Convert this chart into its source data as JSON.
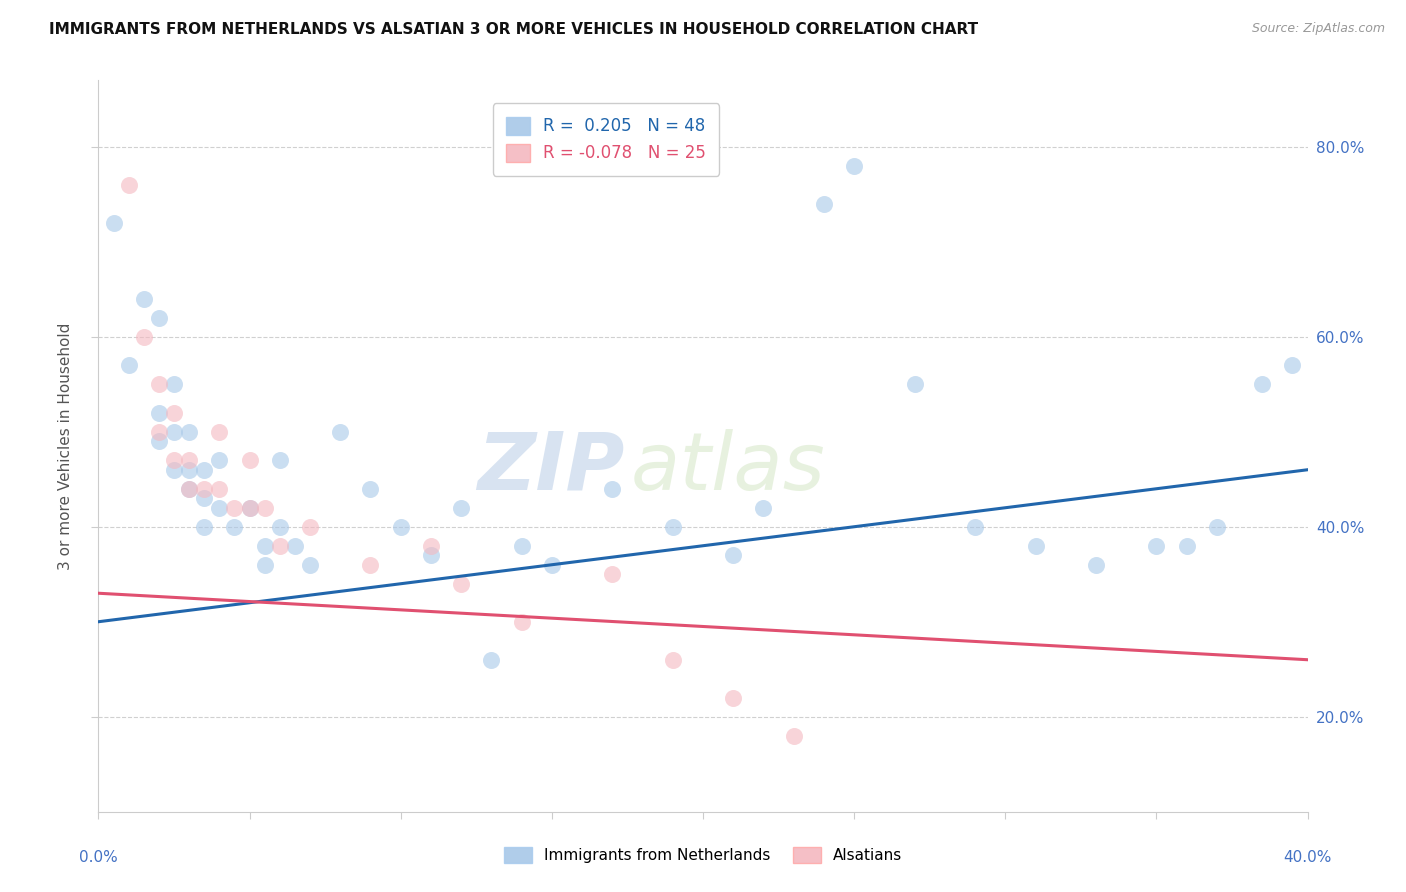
{
  "title": "IMMIGRANTS FROM NETHERLANDS VS ALSATIAN 3 OR MORE VEHICLES IN HOUSEHOLD CORRELATION CHART",
  "source": "Source: ZipAtlas.com",
  "ylabel": "3 or more Vehicles in Household",
  "legend_blue_label": "R =  0.205   N = 48",
  "legend_pink_label": "R = -0.078   N = 25",
  "legend_bottom_blue": "Immigrants from Netherlands",
  "legend_bottom_pink": "Alsatians",
  "blue_color": "#a8c8e8",
  "pink_color": "#f4b8c0",
  "line_blue_color": "#2166ac",
  "line_pink_color": "#e05070",
  "blue_scatter": [
    [
      0.5,
      72
    ],
    [
      1.0,
      57
    ],
    [
      1.5,
      64
    ],
    [
      2.0,
      62
    ],
    [
      2.0,
      52
    ],
    [
      2.0,
      49
    ],
    [
      2.5,
      55
    ],
    [
      2.5,
      50
    ],
    [
      2.5,
      46
    ],
    [
      3.0,
      50
    ],
    [
      3.0,
      46
    ],
    [
      3.0,
      44
    ],
    [
      3.5,
      46
    ],
    [
      3.5,
      43
    ],
    [
      3.5,
      40
    ],
    [
      4.0,
      47
    ],
    [
      4.0,
      42
    ],
    [
      4.5,
      40
    ],
    [
      5.0,
      42
    ],
    [
      5.5,
      38
    ],
    [
      5.5,
      36
    ],
    [
      6.0,
      47
    ],
    [
      6.0,
      40
    ],
    [
      6.5,
      38
    ],
    [
      7.0,
      36
    ],
    [
      8.0,
      50
    ],
    [
      9.0,
      44
    ],
    [
      10.0,
      40
    ],
    [
      11.0,
      37
    ],
    [
      12.0,
      42
    ],
    [
      13.0,
      26
    ],
    [
      14.0,
      38
    ],
    [
      15.0,
      36
    ],
    [
      17.0,
      44
    ],
    [
      19.0,
      40
    ],
    [
      21.0,
      37
    ],
    [
      22.0,
      42
    ],
    [
      24.0,
      74
    ],
    [
      25.0,
      78
    ],
    [
      27.0,
      55
    ],
    [
      29.0,
      40
    ],
    [
      31.0,
      38
    ],
    [
      33.0,
      36
    ],
    [
      35.0,
      38
    ],
    [
      36.0,
      38
    ],
    [
      37.0,
      40
    ],
    [
      38.5,
      55
    ],
    [
      39.5,
      57
    ]
  ],
  "pink_scatter": [
    [
      1.0,
      76
    ],
    [
      1.5,
      60
    ],
    [
      2.0,
      55
    ],
    [
      2.0,
      50
    ],
    [
      2.5,
      52
    ],
    [
      2.5,
      47
    ],
    [
      3.0,
      47
    ],
    [
      3.0,
      44
    ],
    [
      3.5,
      44
    ],
    [
      4.0,
      50
    ],
    [
      4.0,
      44
    ],
    [
      4.5,
      42
    ],
    [
      5.0,
      47
    ],
    [
      5.0,
      42
    ],
    [
      5.5,
      42
    ],
    [
      6.0,
      38
    ],
    [
      7.0,
      40
    ],
    [
      9.0,
      36
    ],
    [
      11.0,
      38
    ],
    [
      12.0,
      34
    ],
    [
      14.0,
      30
    ],
    [
      17.0,
      35
    ],
    [
      19.0,
      26
    ],
    [
      21.0,
      22
    ],
    [
      23.0,
      18
    ]
  ],
  "xmin": 0.0,
  "xmax": 40.0,
  "ymin": 10.0,
  "ymax": 87.0,
  "yticks": [
    20.0,
    40.0,
    60.0,
    80.0
  ],
  "xticks": [
    0.0,
    5.0,
    10.0,
    15.0,
    20.0,
    25.0,
    30.0,
    35.0,
    40.0
  ],
  "watermark_zip": "ZIP",
  "watermark_atlas": "atlas",
  "blue_line_x": [
    0.0,
    40.0
  ],
  "blue_line_y": [
    30.0,
    46.0
  ],
  "pink_line_x": [
    0.0,
    40.0
  ],
  "pink_line_y": [
    33.0,
    26.0
  ]
}
